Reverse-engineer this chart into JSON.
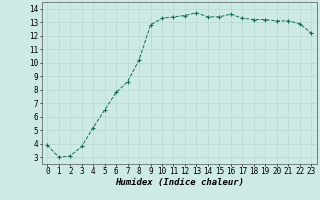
{
  "x": [
    0,
    1,
    2,
    3,
    4,
    5,
    6,
    7,
    8,
    9,
    10,
    11,
    12,
    13,
    14,
    15,
    16,
    17,
    18,
    19,
    20,
    21,
    22,
    23
  ],
  "y": [
    3.9,
    3.0,
    3.1,
    3.8,
    5.2,
    6.5,
    7.8,
    8.6,
    10.2,
    12.8,
    13.3,
    13.4,
    13.5,
    13.7,
    13.4,
    13.4,
    13.6,
    13.3,
    13.2,
    13.2,
    13.1,
    13.1,
    12.9,
    12.2
  ],
  "line_color": "#1a6b5a",
  "marker": "+",
  "marker_size": 3,
  "marker_linewidth": 0.8,
  "bg_color": "#ceeae6",
  "grid_color": "#b8d8d4",
  "xlabel": "Humidex (Indice chaleur)",
  "xlabel_style": "italic",
  "xlim": [
    -0.5,
    23.5
  ],
  "ylim": [
    2.5,
    14.5
  ],
  "yticks": [
    3,
    4,
    5,
    6,
    7,
    8,
    9,
    10,
    11,
    12,
    13,
    14
  ],
  "xticks": [
    0,
    1,
    2,
    3,
    4,
    5,
    6,
    7,
    8,
    9,
    10,
    11,
    12,
    13,
    14,
    15,
    16,
    17,
    18,
    19,
    20,
    21,
    22,
    23
  ],
  "xtick_labels": [
    "0",
    "1",
    "2",
    "3",
    "4",
    "5",
    "6",
    "7",
    "8",
    "9",
    "10",
    "11",
    "12",
    "13",
    "14",
    "15",
    "16",
    "17",
    "18",
    "19",
    "20",
    "21",
    "22",
    "23"
  ],
  "tick_font_size": 5.5,
  "xlabel_font_size": 6.5,
  "line_width": 0.7
}
